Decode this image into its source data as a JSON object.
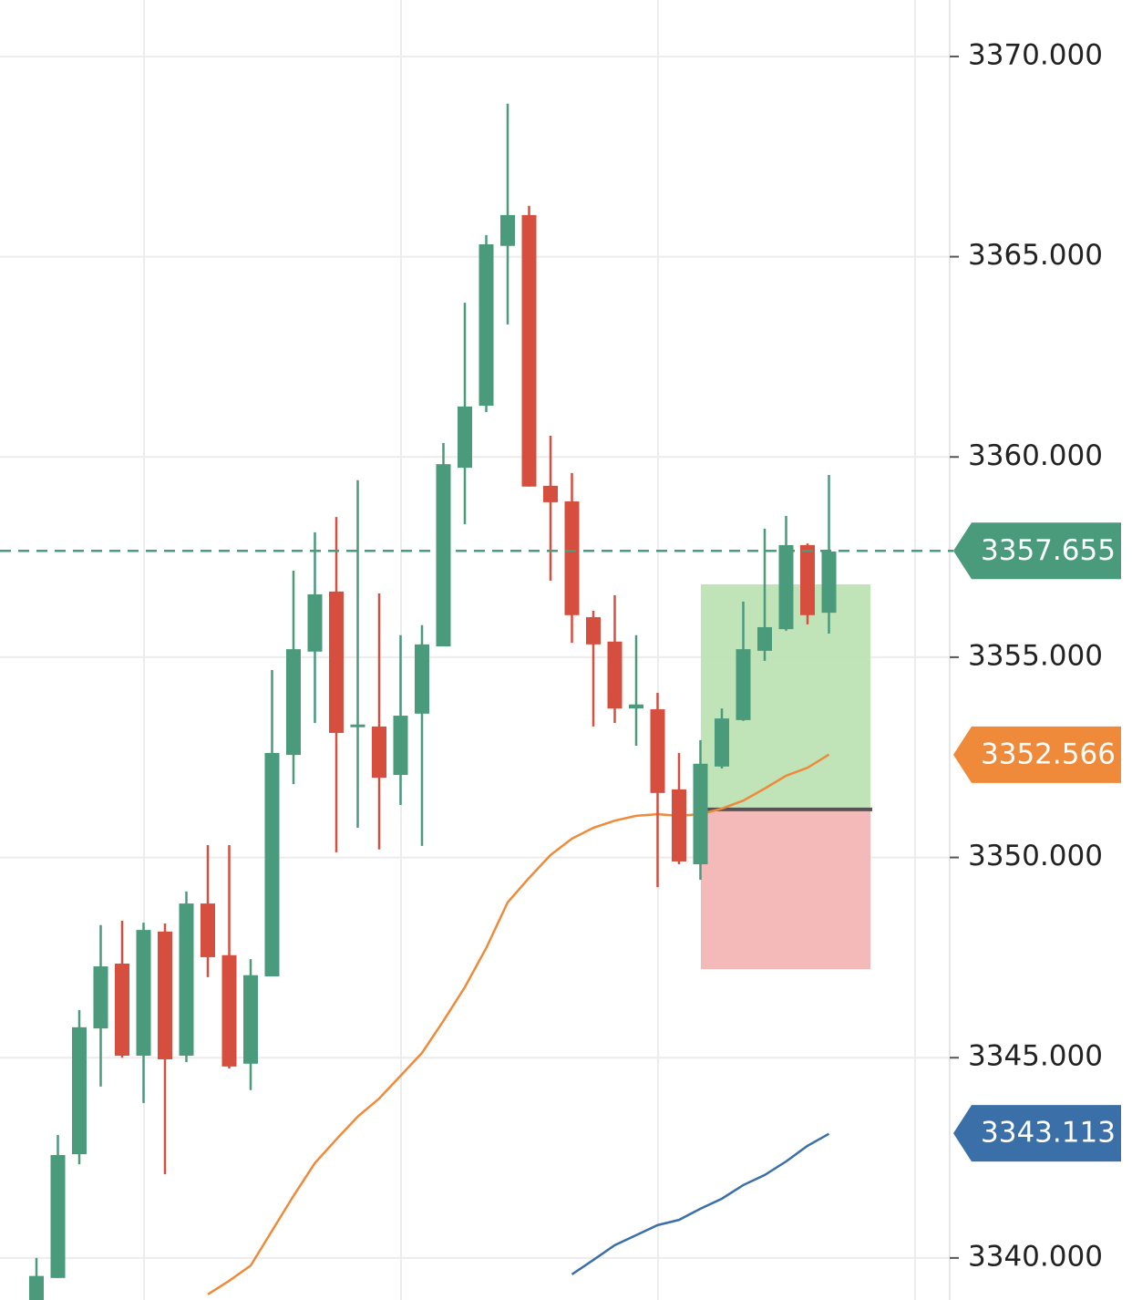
{
  "chart_data": {
    "type": "candlestick",
    "up_color": "#4a9a7c",
    "down_color": "#d64f3e",
    "ylim": [
      3338.95,
      3371.41
    ],
    "yticks": [
      {
        "value": 3340,
        "label": "3340.000"
      },
      {
        "value": 3345,
        "label": "3345.000"
      },
      {
        "value": 3350,
        "label": "3350.000"
      },
      {
        "value": 3355,
        "label": "3355.000"
      },
      {
        "value": 3360,
        "label": "3360.000"
      },
      {
        "value": 3365,
        "label": "3365.000"
      },
      {
        "value": 3370,
        "label": "3370.000"
      }
    ],
    "grid": true,
    "candles": [
      {
        "o": 3338.7,
        "h": 3340.0,
        "l": 3338.7,
        "c": 3339.55
      },
      {
        "o": 3339.5,
        "h": 3343.07,
        "l": 3339.5,
        "c": 3342.57
      },
      {
        "o": 3342.59,
        "h": 3346.19,
        "l": 3342.34,
        "c": 3345.76
      },
      {
        "o": 3345.73,
        "h": 3348.31,
        "l": 3344.28,
        "c": 3347.28
      },
      {
        "o": 3347.35,
        "h": 3348.42,
        "l": 3345.0,
        "c": 3345.05
      },
      {
        "o": 3345.05,
        "h": 3348.37,
        "l": 3343.87,
        "c": 3348.19
      },
      {
        "o": 3348.15,
        "h": 3348.35,
        "l": 3342.09,
        "c": 3344.96
      },
      {
        "o": 3345.05,
        "h": 3349.15,
        "l": 3344.89,
        "c": 3348.85
      },
      {
        "o": 3348.85,
        "h": 3350.31,
        "l": 3347.01,
        "c": 3347.51
      },
      {
        "o": 3347.56,
        "h": 3350.31,
        "l": 3344.73,
        "c": 3344.78
      },
      {
        "o": 3344.85,
        "h": 3347.46,
        "l": 3344.19,
        "c": 3347.06
      },
      {
        "o": 3347.03,
        "h": 3354.68,
        "l": 3347.03,
        "c": 3352.61
      },
      {
        "o": 3352.56,
        "h": 3357.16,
        "l": 3351.83,
        "c": 3355.2
      },
      {
        "o": 3355.14,
        "h": 3358.12,
        "l": 3353.36,
        "c": 3356.57
      },
      {
        "o": 3356.64,
        "h": 3358.5,
        "l": 3350.13,
        "c": 3353.11
      },
      {
        "o": 3353.27,
        "h": 3359.42,
        "l": 3350.74,
        "c": 3353.32
      },
      {
        "o": 3353.27,
        "h": 3356.59,
        "l": 3350.2,
        "c": 3351.99
      },
      {
        "o": 3352.06,
        "h": 3355.55,
        "l": 3351.31,
        "c": 3353.54
      },
      {
        "o": 3353.59,
        "h": 3355.8,
        "l": 3350.29,
        "c": 3355.32
      },
      {
        "o": 3355.27,
        "h": 3360.35,
        "l": 3355.27,
        "c": 3359.82
      },
      {
        "o": 3359.73,
        "h": 3363.85,
        "l": 3358.32,
        "c": 3361.26
      },
      {
        "o": 3361.28,
        "h": 3365.54,
        "l": 3361.12,
        "c": 3365.31
      },
      {
        "o": 3365.27,
        "h": 3368.82,
        "l": 3363.31,
        "c": 3366.04
      },
      {
        "o": 3366.04,
        "h": 3366.27,
        "l": 3359.26,
        "c": 3359.26
      },
      {
        "o": 3359.28,
        "h": 3360.53,
        "l": 3356.91,
        "c": 3358.87
      },
      {
        "o": 3358.89,
        "h": 3359.6,
        "l": 3355.36,
        "c": 3356.05
      },
      {
        "o": 3356.0,
        "h": 3356.16,
        "l": 3353.27,
        "c": 3355.32
      },
      {
        "o": 3355.39,
        "h": 3356.55,
        "l": 3353.36,
        "c": 3353.72
      },
      {
        "o": 3353.72,
        "h": 3355.55,
        "l": 3352.79,
        "c": 3353.82
      },
      {
        "o": 3353.7,
        "h": 3354.11,
        "l": 3349.26,
        "c": 3351.61
      },
      {
        "o": 3351.7,
        "h": 3352.61,
        "l": 3349.83,
        "c": 3349.9
      },
      {
        "o": 3349.83,
        "h": 3352.93,
        "l": 3349.44,
        "c": 3352.34
      },
      {
        "o": 3352.27,
        "h": 3353.72,
        "l": 3352.22,
        "c": 3353.47
      },
      {
        "o": 3353.43,
        "h": 3356.39,
        "l": 3353.41,
        "c": 3355.2
      },
      {
        "o": 3355.16,
        "h": 3358.21,
        "l": 3354.91,
        "c": 3355.75
      },
      {
        "o": 3355.7,
        "h": 3358.53,
        "l": 3355.66,
        "c": 3357.8
      },
      {
        "o": 3357.8,
        "h": 3357.84,
        "l": 3355.82,
        "c": 3356.05
      },
      {
        "o": 3356.11,
        "h": 3359.55,
        "l": 3355.59,
        "c": 3357.64
      }
    ],
    "series": [
      {
        "color": "#ee8a3a",
        "values": [
          null,
          null,
          null,
          null,
          null,
          null,
          null,
          null,
          3339.09,
          3339.43,
          3339.81,
          3340.68,
          3341.55,
          3342.37,
          3342.96,
          3343.53,
          3343.98,
          3344.55,
          3345.12,
          3345.92,
          3346.76,
          3347.74,
          3348.88,
          3349.49,
          3350.06,
          3350.47,
          3350.74,
          3350.92,
          3351.04,
          3351.08,
          3351.04,
          3351.08,
          3351.22,
          3351.42,
          3351.72,
          3352.04,
          3352.24,
          3352.57
        ]
      },
      {
        "color": "#3a6fa8",
        "values": [
          null,
          null,
          null,
          null,
          null,
          null,
          null,
          null,
          null,
          null,
          null,
          null,
          null,
          null,
          null,
          null,
          null,
          null,
          null,
          null,
          null,
          null,
          null,
          null,
          null,
          3339.59,
          3339.95,
          3340.32,
          3340.57,
          3340.82,
          3340.95,
          3341.23,
          3341.48,
          3341.82,
          3342.07,
          3342.41,
          3342.8,
          3343.1
        ]
      }
    ],
    "position": {
      "target": 3356.82,
      "entry": 3351.2,
      "stop": 3347.21,
      "target_color": "#bde1b4",
      "stop_color": "#f3b6b6"
    },
    "price_labels": [
      {
        "value": 3357.655,
        "color": "#4a9a7c",
        "dashed": true
      },
      {
        "value": 3352.566,
        "color": "#ee8a3a"
      },
      {
        "value": 3343.113,
        "color": "#3a6fa8"
      }
    ]
  }
}
